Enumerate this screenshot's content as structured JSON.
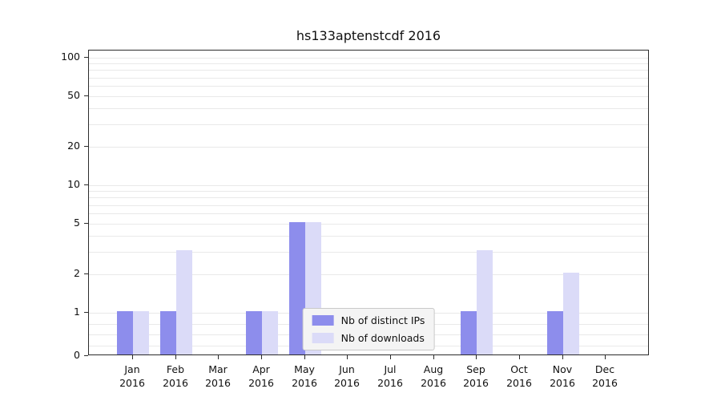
{
  "chart_data": {
    "type": "bar",
    "title": "hs133aptenstcdf 2016",
    "categories": [
      "Jan",
      "Feb",
      "Mar",
      "Apr",
      "May",
      "Jun",
      "Jul",
      "Aug",
      "Sep",
      "Oct",
      "Nov",
      "Dec"
    ],
    "category_year": "2016",
    "series": [
      {
        "name": "Nb of distinct IPs",
        "color": "#8d8dec",
        "values": [
          1,
          1,
          0,
          1,
          5,
          0,
          0,
          0,
          1,
          0,
          1,
          0
        ]
      },
      {
        "name": "Nb of downloads",
        "color": "#dbdbf8",
        "values": [
          1,
          3,
          0,
          1,
          5,
          0,
          0,
          0,
          3,
          0,
          2,
          0
        ]
      }
    ],
    "yticks": [
      0,
      1,
      2,
      5,
      10,
      20,
      50,
      100
    ],
    "minor_gridlines": [
      0.25,
      0.5,
      0.75,
      2,
      3,
      4,
      6,
      7,
      8,
      9,
      20,
      30,
      40,
      60,
      70,
      80,
      90
    ],
    "ylim": [
      0,
      100
    ],
    "yscale": "symlog",
    "grid": true,
    "legend_position": "lower center",
    "grid_color": "#e9e9e9",
    "axis_color": "#2b2b2b",
    "background_color": "#ffffff"
  }
}
